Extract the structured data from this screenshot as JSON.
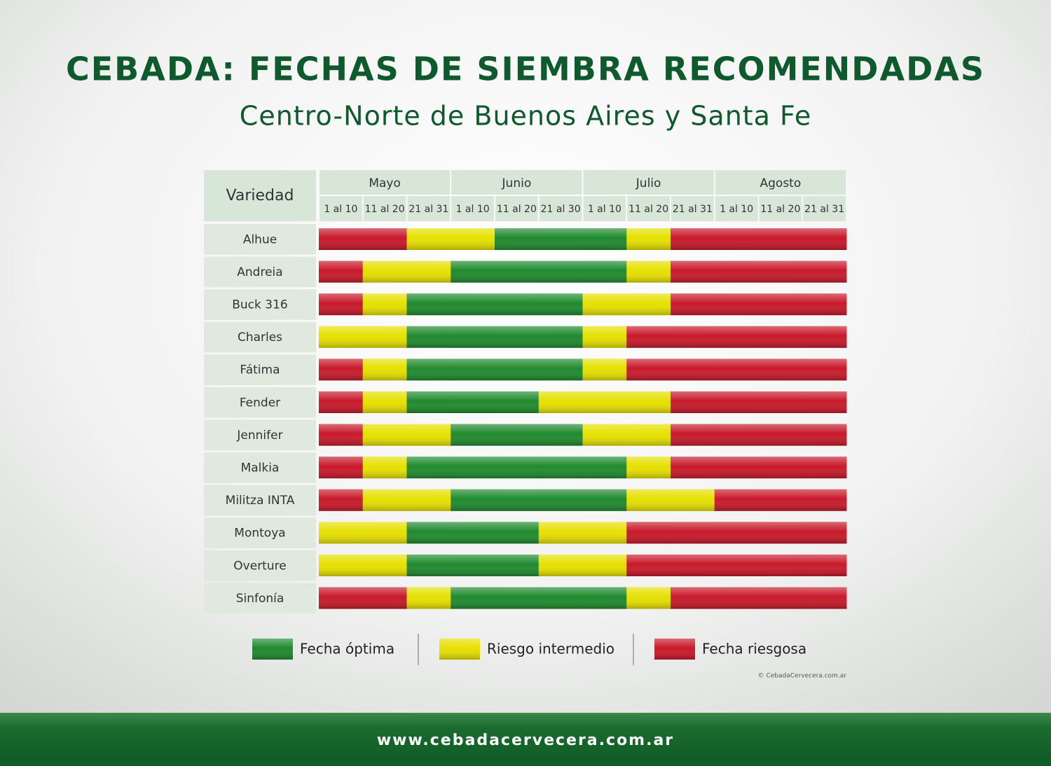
{
  "header": {
    "title": "CEBADA: FECHAS DE SIEMBRA RECOMENDADAS",
    "subtitle": "Centro-Norte de Buenos Aires y Santa Fe"
  },
  "table": {
    "corner": "Variedad",
    "months": [
      "Mayo",
      "Junio",
      "Julio",
      "Agosto"
    ],
    "periods": [
      "1 al 10",
      "11 al 20",
      "21 al 31",
      "1 al 10",
      "11 al 20",
      "21 al 30",
      "1 al 10",
      "11 al 20",
      "21 al 31",
      "1 al 10",
      "11 al 20",
      "21 al 31"
    ],
    "rows": [
      {
        "name": "Alhue",
        "cells": [
          "Fecha riesgosa",
          "Fecha riesgosa",
          "Riesgo intermedio",
          "Riesgo intermedio",
          "Fecha óptima",
          "Fecha óptima",
          "Fecha óptima",
          "Riesgo intermedio",
          "Fecha riesgosa",
          "Fecha riesgosa",
          "Fecha riesgosa",
          "Fecha riesgosa"
        ]
      },
      {
        "name": "Andreia",
        "cells": [
          "Fecha riesgosa",
          "Riesgo intermedio",
          "Riesgo intermedio",
          "Fecha óptima",
          "Fecha óptima",
          "Fecha óptima",
          "Fecha óptima",
          "Riesgo intermedio",
          "Fecha riesgosa",
          "Fecha riesgosa",
          "Fecha riesgosa",
          "Fecha riesgosa"
        ]
      },
      {
        "name": "Buck 316",
        "cells": [
          "Fecha riesgosa",
          "Riesgo intermedio",
          "Fecha óptima",
          "Fecha óptima",
          "Fecha óptima",
          "Fecha óptima",
          "Riesgo intermedio",
          "Riesgo intermedio",
          "Fecha riesgosa",
          "Fecha riesgosa",
          "Fecha riesgosa",
          "Fecha riesgosa"
        ]
      },
      {
        "name": "Charles",
        "cells": [
          "Riesgo intermedio",
          "Riesgo intermedio",
          "Fecha óptima",
          "Fecha óptima",
          "Fecha óptima",
          "Fecha óptima",
          "Riesgo intermedio",
          "Fecha riesgosa",
          "Fecha riesgosa",
          "Fecha riesgosa",
          "Fecha riesgosa",
          "Fecha riesgosa"
        ]
      },
      {
        "name": "Fátima",
        "cells": [
          "Fecha riesgosa",
          "Riesgo intermedio",
          "Fecha óptima",
          "Fecha óptima",
          "Fecha óptima",
          "Fecha óptima",
          "Riesgo intermedio",
          "Fecha riesgosa",
          "Fecha riesgosa",
          "Fecha riesgosa",
          "Fecha riesgosa",
          "Fecha riesgosa"
        ]
      },
      {
        "name": "Fender",
        "cells": [
          "Fecha riesgosa",
          "Riesgo intermedio",
          "Fecha óptima",
          "Fecha óptima",
          "Fecha óptima",
          "Riesgo intermedio",
          "Riesgo intermedio",
          "Riesgo intermedio",
          "Fecha riesgosa",
          "Fecha riesgosa",
          "Fecha riesgosa",
          "Fecha riesgosa"
        ]
      },
      {
        "name": "Jennifer",
        "cells": [
          "Fecha riesgosa",
          "Riesgo intermedio",
          "Riesgo intermedio",
          "Fecha óptima",
          "Fecha óptima",
          "Fecha óptima",
          "Riesgo intermedio",
          "Riesgo intermedio",
          "Fecha riesgosa",
          "Fecha riesgosa",
          "Fecha riesgosa",
          "Fecha riesgosa"
        ]
      },
      {
        "name": "Malkia",
        "cells": [
          "Fecha riesgosa",
          "Riesgo intermedio",
          "Fecha óptima",
          "Fecha óptima",
          "Fecha óptima",
          "Fecha óptima",
          "Fecha óptima",
          "Riesgo intermedio",
          "Fecha riesgosa",
          "Fecha riesgosa",
          "Fecha riesgosa",
          "Fecha riesgosa"
        ]
      },
      {
        "name": "Militza INTA",
        "cells": [
          "Fecha riesgosa",
          "Riesgo intermedio",
          "Riesgo intermedio",
          "Fecha óptima",
          "Fecha óptima",
          "Fecha óptima",
          "Fecha óptima",
          "Riesgo intermedio",
          "Riesgo intermedio",
          "Fecha riesgosa",
          "Fecha riesgosa",
          "Fecha riesgosa"
        ]
      },
      {
        "name": "Montoya",
        "cells": [
          "Riesgo intermedio",
          "Riesgo intermedio",
          "Fecha óptima",
          "Fecha óptima",
          "Fecha óptima",
          "Riesgo intermedio",
          "Riesgo intermedio",
          "Fecha riesgosa",
          "Fecha riesgosa",
          "Fecha riesgosa",
          "Fecha riesgosa",
          "Fecha riesgosa"
        ]
      },
      {
        "name": "Overture",
        "cells": [
          "Riesgo intermedio",
          "Riesgo intermedio",
          "Fecha óptima",
          "Fecha óptima",
          "Fecha óptima",
          "Riesgo intermedio",
          "Riesgo intermedio",
          "Fecha riesgosa",
          "Fecha riesgosa",
          "Fecha riesgosa",
          "Fecha riesgosa",
          "Fecha riesgosa"
        ]
      },
      {
        "name": "Sinfonía",
        "cells": [
          "Fecha riesgosa",
          "Fecha riesgosa",
          "Riesgo intermedio",
          "Fecha óptima",
          "Fecha óptima",
          "Fecha óptima",
          "Fecha óptima",
          "Riesgo intermedio",
          "Fecha riesgosa",
          "Fecha riesgosa",
          "Fecha riesgosa",
          "Fecha riesgosa"
        ]
      }
    ]
  },
  "legend": [
    {
      "label": "Fecha óptima",
      "color": "#1f8a2e"
    },
    {
      "label": "Riesgo intermedio",
      "color": "#e6e000"
    },
    {
      "label": "Fecha riesgosa",
      "color": "#c8192a"
    }
  ],
  "credit": "© CebadaCervecera.com.ar",
  "footer": {
    "url": "www.cebadacervecera.com.ar"
  }
}
